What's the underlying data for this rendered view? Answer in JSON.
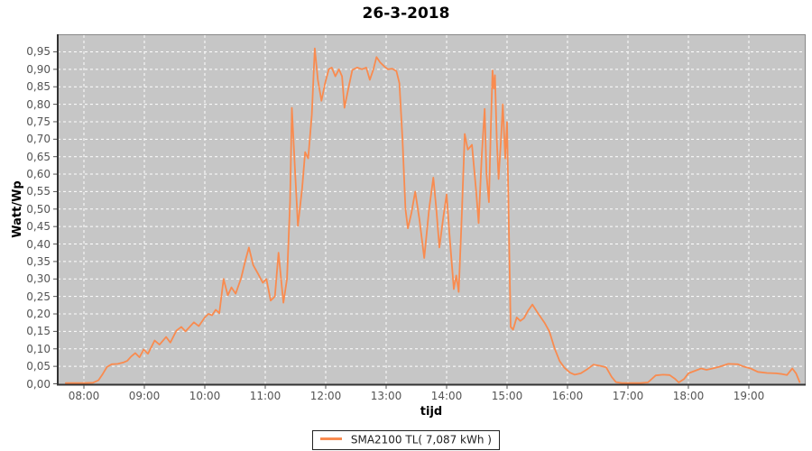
{
  "title": "26-3-2018",
  "colors": {
    "line": "#f98b4f",
    "plot_background": "#c6c6c6",
    "gridline": "#ffffff",
    "tick_text": "#545454",
    "axis_line": "#333333",
    "plot_border": "#888888"
  },
  "axes": {
    "y_label": "Watt/Wp",
    "x_label": "tijd",
    "y_ticks": [
      {
        "v": 0.0,
        "label": "0,00"
      },
      {
        "v": 0.05,
        "label": "0,05"
      },
      {
        "v": 0.1,
        "label": "0,10"
      },
      {
        "v": 0.15,
        "label": "0,15"
      },
      {
        "v": 0.2,
        "label": "0,20"
      },
      {
        "v": 0.25,
        "label": "0,25"
      },
      {
        "v": 0.3,
        "label": "0,30"
      },
      {
        "v": 0.35,
        "label": "0,35"
      },
      {
        "v": 0.4,
        "label": "0,40"
      },
      {
        "v": 0.45,
        "label": "0,45"
      },
      {
        "v": 0.5,
        "label": "0,50"
      },
      {
        "v": 0.55,
        "label": "0,55"
      },
      {
        "v": 0.6,
        "label": "0,60"
      },
      {
        "v": 0.65,
        "label": "0,65"
      },
      {
        "v": 0.7,
        "label": "0,70"
      },
      {
        "v": 0.75,
        "label": "0,75"
      },
      {
        "v": 0.8,
        "label": "0,80"
      },
      {
        "v": 0.85,
        "label": "0,85"
      },
      {
        "v": 0.9,
        "label": "0,90"
      },
      {
        "v": 0.95,
        "label": "0,95"
      }
    ],
    "x_ticks": [
      {
        "h": 8,
        "label": "08:00"
      },
      {
        "h": 9,
        "label": "09:00"
      },
      {
        "h": 10,
        "label": "10:00"
      },
      {
        "h": 11,
        "label": "11:00"
      },
      {
        "h": 12,
        "label": "12:00"
      },
      {
        "h": 13,
        "label": "13:00"
      },
      {
        "h": 14,
        "label": "14:00"
      },
      {
        "h": 15,
        "label": "15:00"
      },
      {
        "h": 16,
        "label": "16:00"
      },
      {
        "h": 17,
        "label": "17:00"
      },
      {
        "h": 18,
        "label": "18:00"
      },
      {
        "h": 19,
        "label": "19:00"
      }
    ]
  },
  "legend": {
    "label": "SMA2100 TL( 7,087 kWh )"
  },
  "chart_data": {
    "type": "line",
    "title": "26-3-2018",
    "xlabel": "tijd",
    "ylabel": "Watt/Wp",
    "x_format": "decimal_hours",
    "xlim": [
      7.55,
      20.0
    ],
    "ylim": [
      0,
      0.975
    ],
    "y_tick_step": 0.05,
    "grid": true,
    "legend_position": "bottom",
    "series": [
      {
        "name": "SMA2100 TL( 7,087 kWh )",
        "color": "#f98b4f",
        "points": [
          [
            7.7,
            0.002
          ],
          [
            7.85,
            0.002
          ],
          [
            8.0,
            0.002
          ],
          [
            8.15,
            0.003
          ],
          [
            8.24,
            0.01
          ],
          [
            8.31,
            0.028
          ],
          [
            8.38,
            0.048
          ],
          [
            8.46,
            0.056
          ],
          [
            8.56,
            0.057
          ],
          [
            8.65,
            0.061
          ],
          [
            8.72,
            0.066
          ],
          [
            8.78,
            0.078
          ],
          [
            8.85,
            0.088
          ],
          [
            8.92,
            0.076
          ],
          [
            8.99,
            0.098
          ],
          [
            9.06,
            0.086
          ],
          [
            9.17,
            0.124
          ],
          [
            9.25,
            0.112
          ],
          [
            9.36,
            0.134
          ],
          [
            9.43,
            0.118
          ],
          [
            9.53,
            0.152
          ],
          [
            9.61,
            0.163
          ],
          [
            9.68,
            0.15
          ],
          [
            9.82,
            0.176
          ],
          [
            9.9,
            0.165
          ],
          [
            10.0,
            0.19
          ],
          [
            10.06,
            0.2
          ],
          [
            10.12,
            0.196
          ],
          [
            10.18,
            0.212
          ],
          [
            10.24,
            0.202
          ],
          [
            10.31,
            0.3
          ],
          [
            10.38,
            0.253
          ],
          [
            10.44,
            0.276
          ],
          [
            10.51,
            0.258
          ],
          [
            10.6,
            0.302
          ],
          [
            10.67,
            0.352
          ],
          [
            10.73,
            0.39
          ],
          [
            10.8,
            0.34
          ],
          [
            10.88,
            0.315
          ],
          [
            10.96,
            0.289
          ],
          [
            11.02,
            0.3
          ],
          [
            11.09,
            0.238
          ],
          [
            11.16,
            0.25
          ],
          [
            11.22,
            0.375
          ],
          [
            11.3,
            0.232
          ],
          [
            11.36,
            0.3
          ],
          [
            11.41,
            0.52
          ],
          [
            11.44,
            0.79
          ],
          [
            11.49,
            0.62
          ],
          [
            11.54,
            0.452
          ],
          [
            11.61,
            0.56
          ],
          [
            11.66,
            0.663
          ],
          [
            11.71,
            0.645
          ],
          [
            11.77,
            0.77
          ],
          [
            11.82,
            0.96
          ],
          [
            11.87,
            0.87
          ],
          [
            11.93,
            0.81
          ],
          [
            11.99,
            0.86
          ],
          [
            12.05,
            0.9
          ],
          [
            12.1,
            0.905
          ],
          [
            12.16,
            0.88
          ],
          [
            12.22,
            0.9
          ],
          [
            12.27,
            0.88
          ],
          [
            12.31,
            0.79
          ],
          [
            12.38,
            0.85
          ],
          [
            12.44,
            0.898
          ],
          [
            12.52,
            0.905
          ],
          [
            12.6,
            0.9
          ],
          [
            12.67,
            0.905
          ],
          [
            12.73,
            0.87
          ],
          [
            12.79,
            0.9
          ],
          [
            12.84,
            0.935
          ],
          [
            12.9,
            0.92
          ],
          [
            12.97,
            0.908
          ],
          [
            13.03,
            0.9
          ],
          [
            13.1,
            0.902
          ],
          [
            13.17,
            0.895
          ],
          [
            13.22,
            0.86
          ],
          [
            13.27,
            0.7
          ],
          [
            13.32,
            0.5
          ],
          [
            13.36,
            0.445
          ],
          [
            13.42,
            0.49
          ],
          [
            13.48,
            0.55
          ],
          [
            13.55,
            0.47
          ],
          [
            13.63,
            0.36
          ],
          [
            13.71,
            0.5
          ],
          [
            13.78,
            0.59
          ],
          [
            13.83,
            0.5
          ],
          [
            13.88,
            0.39
          ],
          [
            13.94,
            0.47
          ],
          [
            14.0,
            0.542
          ],
          [
            14.06,
            0.4
          ],
          [
            14.12,
            0.271
          ],
          [
            14.16,
            0.31
          ],
          [
            14.2,
            0.263
          ],
          [
            14.25,
            0.48
          ],
          [
            14.3,
            0.715
          ],
          [
            14.35,
            0.67
          ],
          [
            14.42,
            0.684
          ],
          [
            14.49,
            0.55
          ],
          [
            14.53,
            0.46
          ],
          [
            14.58,
            0.65
          ],
          [
            14.63,
            0.787
          ],
          [
            14.66,
            0.6
          ],
          [
            14.7,
            0.52
          ],
          [
            14.73,
            0.72
          ],
          [
            14.76,
            0.897
          ],
          [
            14.78,
            0.845
          ],
          [
            14.8,
            0.883
          ],
          [
            14.83,
            0.7
          ],
          [
            14.86,
            0.586
          ],
          [
            14.9,
            0.7
          ],
          [
            14.93,
            0.8
          ],
          [
            14.97,
            0.645
          ],
          [
            15.0,
            0.749
          ],
          [
            15.03,
            0.45
          ],
          [
            15.06,
            0.163
          ],
          [
            15.1,
            0.155
          ],
          [
            15.16,
            0.19
          ],
          [
            15.22,
            0.18
          ],
          [
            15.28,
            0.188
          ],
          [
            15.35,
            0.21
          ],
          [
            15.42,
            0.227
          ],
          [
            15.5,
            0.205
          ],
          [
            15.62,
            0.175
          ],
          [
            15.7,
            0.15
          ],
          [
            15.79,
            0.1
          ],
          [
            15.87,
            0.065
          ],
          [
            15.95,
            0.046
          ],
          [
            16.04,
            0.032
          ],
          [
            16.12,
            0.026
          ],
          [
            16.22,
            0.03
          ],
          [
            16.33,
            0.042
          ],
          [
            16.43,
            0.055
          ],
          [
            16.55,
            0.051
          ],
          [
            16.64,
            0.047
          ],
          [
            16.73,
            0.02
          ],
          [
            16.8,
            0.005
          ],
          [
            16.9,
            0.002
          ],
          [
            17.05,
            0.002
          ],
          [
            17.2,
            0.002
          ],
          [
            17.33,
            0.004
          ],
          [
            17.46,
            0.024
          ],
          [
            17.58,
            0.026
          ],
          [
            17.69,
            0.025
          ],
          [
            17.78,
            0.014
          ],
          [
            17.84,
            0.004
          ],
          [
            17.93,
            0.014
          ],
          [
            18.0,
            0.03
          ],
          [
            18.21,
            0.044
          ],
          [
            18.3,
            0.04
          ],
          [
            18.4,
            0.044
          ],
          [
            18.52,
            0.049
          ],
          [
            18.66,
            0.057
          ],
          [
            18.82,
            0.056
          ],
          [
            18.9,
            0.05
          ],
          [
            19.03,
            0.044
          ],
          [
            19.15,
            0.034
          ],
          [
            19.3,
            0.031
          ],
          [
            19.45,
            0.03
          ],
          [
            19.55,
            0.028
          ],
          [
            19.63,
            0.025
          ],
          [
            19.72,
            0.044
          ],
          [
            19.78,
            0.03
          ],
          [
            19.84,
            0.005
          ]
        ]
      }
    ]
  }
}
